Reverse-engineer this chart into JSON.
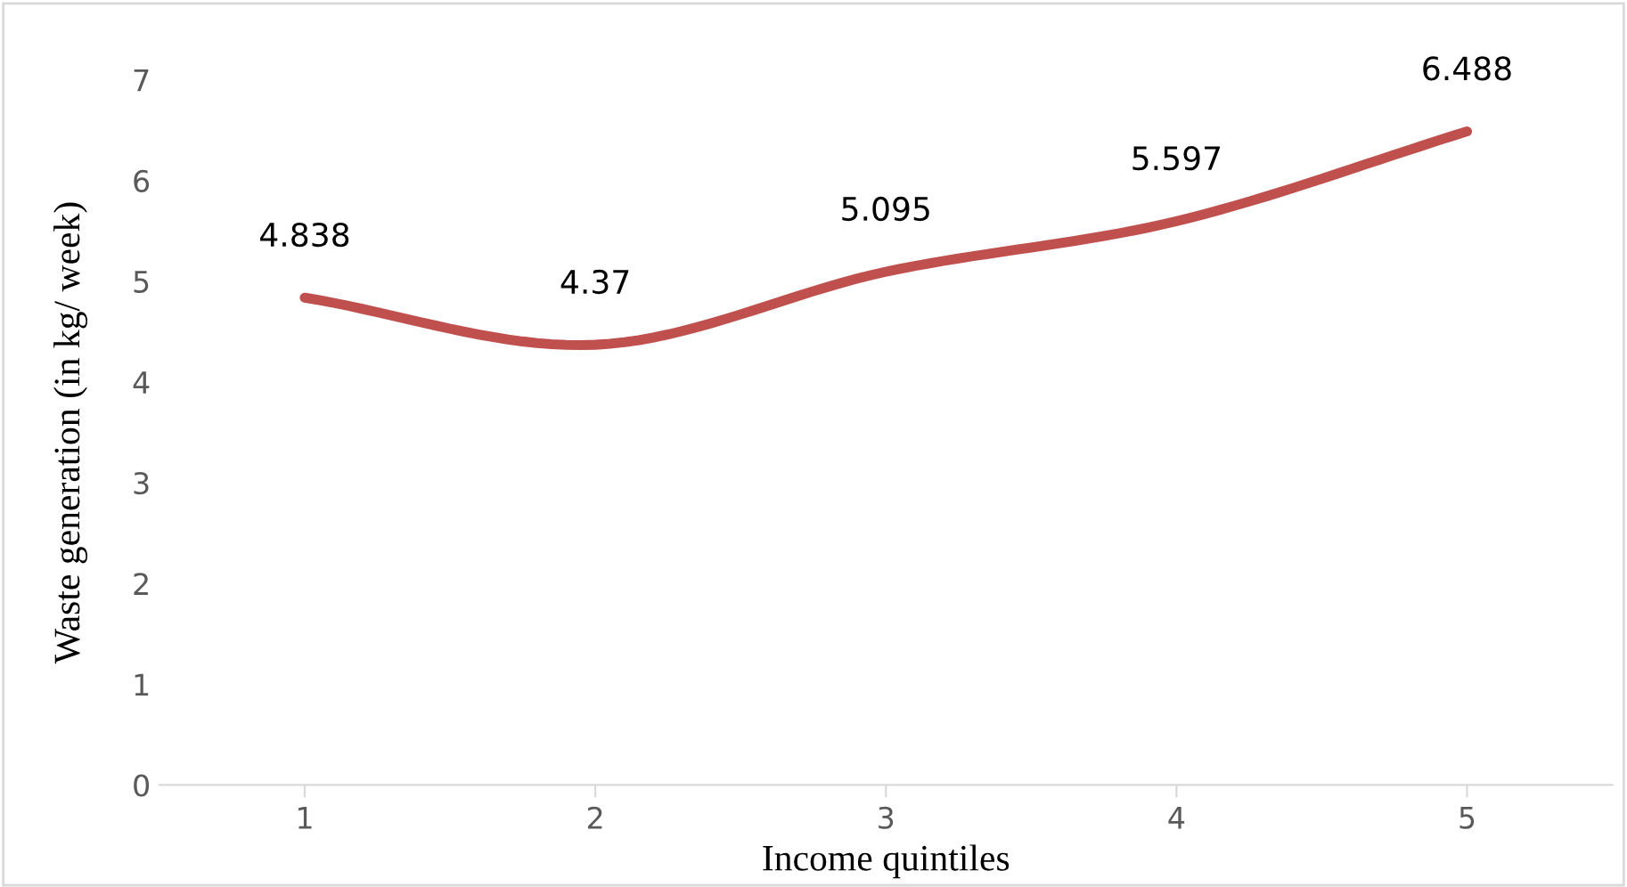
{
  "chart_data": {
    "type": "line",
    "xlabel": "Income quintiles",
    "ylabel": "Waste generation (in kg/ week)",
    "categories": [
      "1",
      "2",
      "3",
      "4",
      "5"
    ],
    "series": [
      {
        "color": "#c0504d",
        "values": [
          4.838,
          4.37,
          5.095,
          5.597,
          6.488
        ]
      }
    ],
    "ylim": [
      0,
      7
    ],
    "yticks": [
      0,
      1,
      2,
      3,
      4,
      5,
      6,
      7
    ],
    "grid": false,
    "legend": false,
    "marker": "none",
    "line_style": "solid",
    "data_labels": true
  }
}
